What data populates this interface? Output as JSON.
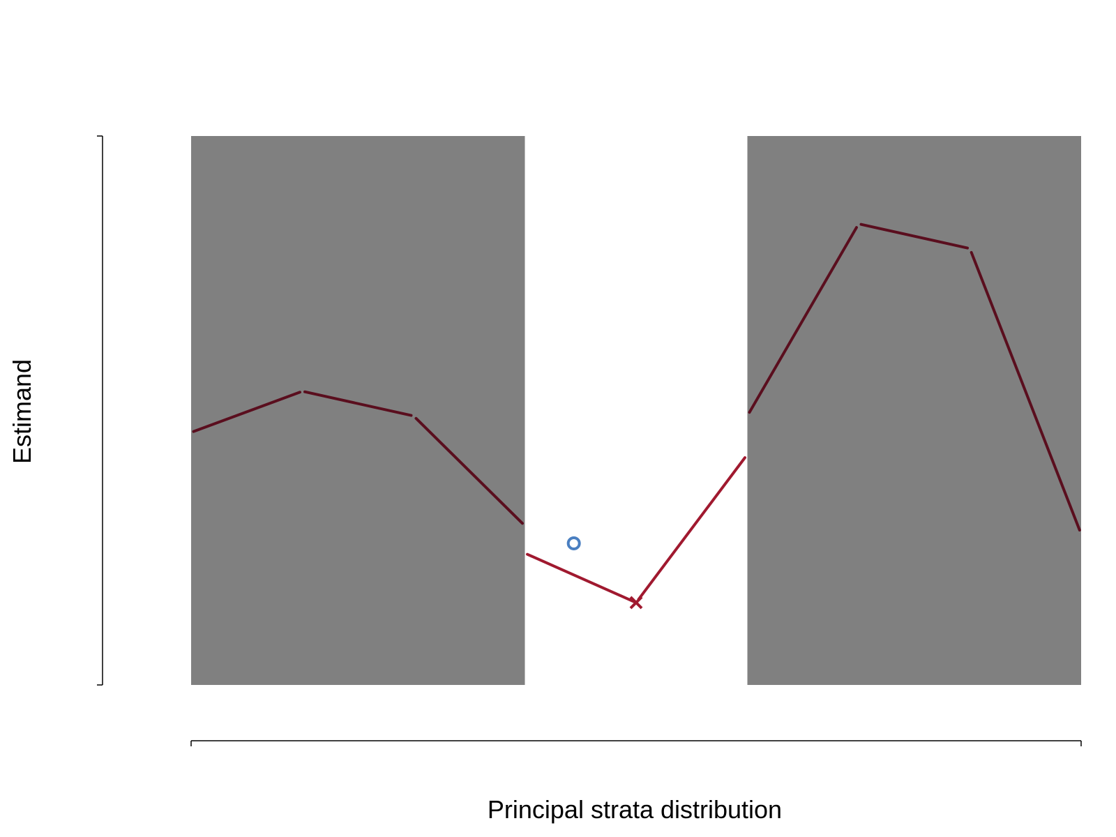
{
  "chart_data": {
    "type": "line",
    "title": "",
    "xlabel": "Principal strata distribution",
    "ylabel": "Estimand",
    "xlim": [
      0,
      1
    ],
    "ylim": [
      0,
      1
    ],
    "grid": false,
    "ticks_labeled": false,
    "shaded_regions": [
      {
        "x_start": 0.0,
        "x_end": 0.375,
        "color": "#808080"
      },
      {
        "x_start": 0.625,
        "x_end": 1.0,
        "color": "#808080"
      }
    ],
    "series": [
      {
        "segment": "left",
        "color": "#5a0e1e",
        "style": "solid",
        "width": 4,
        "x": [
          0.0,
          0.125,
          0.25,
          0.375
        ],
        "y": [
          0.46,
          0.535,
          0.49,
          0.29
        ]
      },
      {
        "segment": "middle",
        "color": "#a0192f",
        "style": "solid",
        "width": 4,
        "x": [
          0.375,
          0.5,
          0.625
        ],
        "y": [
          0.24,
          0.15,
          0.42
        ]
      },
      {
        "segment": "right",
        "color": "#5a0e1e",
        "style": "solid",
        "width": 4,
        "x": [
          0.625,
          0.75,
          0.875,
          1.0
        ],
        "y": [
          0.49,
          0.84,
          0.795,
          0.275
        ]
      }
    ],
    "markers": [
      {
        "shape": "circle",
        "color": "#4a7fc1",
        "x": 0.43,
        "y": 0.258
      },
      {
        "shape": "cross",
        "color": "#a0192f",
        "x": 0.5,
        "y": 0.15
      }
    ]
  }
}
